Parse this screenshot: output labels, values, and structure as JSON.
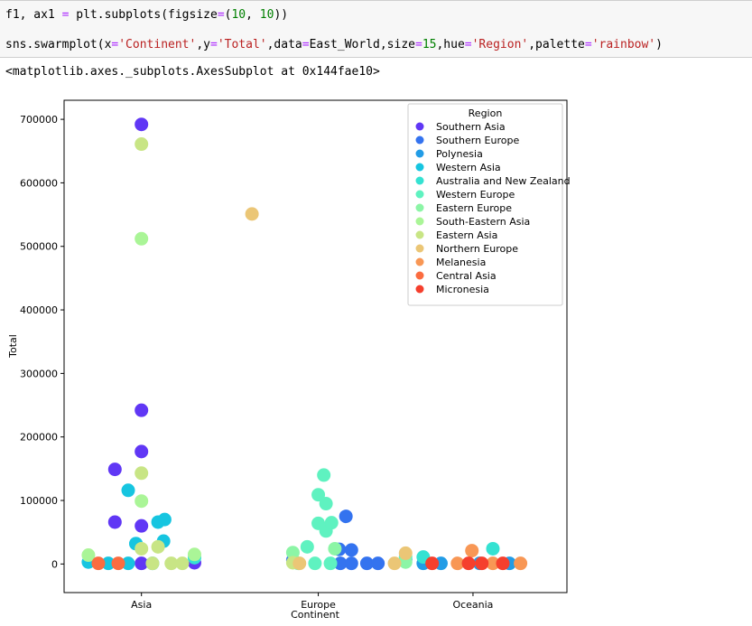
{
  "code": {
    "line1": {
      "prefix": "f1, ax1 ",
      "eq": "=",
      "mid": " plt.subplots(figsize",
      "eq2": "=",
      "open": "(",
      "num1": "10",
      "comma": ", ",
      "num2": "10",
      "close": "))"
    },
    "line2": {
      "p1": "sns.swarmplot(x",
      "e1": "=",
      "s1": "'Continent'",
      "p2": ",y",
      "e2": "=",
      "s2": "'Total'",
      "p3": ",data",
      "e3": "=",
      "p4": "East_World,size",
      "e4": "=",
      "n1": "15",
      "p5": ",hue",
      "e5": "=",
      "s3": "'Region'",
      "p6": ",palette",
      "e6": "=",
      "s4": "'rainbow'",
      "p7": ")"
    }
  },
  "output": "<matplotlib.axes._subplots.AxesSubplot at 0x144fae10>",
  "chart_data": {
    "type": "scatter",
    "xlabel": "Continent",
    "ylabel": "Total",
    "categories": [
      "Asia",
      "Europe",
      "Oceania"
    ],
    "ylim": [
      -45000,
      730000
    ],
    "yticks": [
      0,
      100000,
      200000,
      300000,
      400000,
      500000,
      600000,
      700000
    ],
    "ytick_labels": [
      "0",
      "100000",
      "200000",
      "300000",
      "400000",
      "500000",
      "600000",
      "700000"
    ],
    "legend": {
      "title": "Region",
      "position": "upper right"
    },
    "series": [
      {
        "name": "Southern Asia",
        "color": "#6037f5",
        "points": [
          [
            0,
            692000
          ],
          [
            0,
            242000
          ],
          [
            0,
            177000
          ],
          [
            -0.24,
            149000
          ],
          [
            -0.24,
            66000
          ],
          [
            0,
            60000
          ],
          [
            0,
            1000
          ],
          [
            0.48,
            2000
          ]
        ]
      },
      {
        "name": "Southern Europe",
        "color": "#3473ef",
        "points": [
          [
            1.85,
            75000
          ],
          [
            1.79,
            23000
          ],
          [
            1.9,
            22000
          ],
          [
            1.8,
            1000
          ],
          [
            1.9,
            1000
          ],
          [
            2.04,
            1000
          ],
          [
            2.14,
            1000
          ],
          [
            1.37,
            6000
          ],
          [
            2.39,
            7000
          ]
        ]
      },
      {
        "name": "Polynesia",
        "color": "#229ce6",
        "points": [
          [
            2.55,
            1000
          ],
          [
            2.71,
            1000
          ],
          [
            3.06,
            1000
          ],
          [
            3.33,
            1000
          ]
        ]
      },
      {
        "name": "Western Asia",
        "color": "#16c5e0",
        "points": [
          [
            -0.12,
            116000
          ],
          [
            -0.05,
            32000
          ],
          [
            0.21,
            70000
          ],
          [
            0.15,
            66000
          ],
          [
            0.2,
            36000
          ],
          [
            -0.12,
            1000
          ],
          [
            -0.3,
            1000
          ],
          [
            -0.48,
            3000
          ],
          [
            0.1,
            1000
          ],
          [
            -0.05,
            32000
          ]
        ]
      },
      {
        "name": "Australia and New Zealand",
        "color": "#35e2d2",
        "points": [
          [
            2.55,
            11000
          ],
          [
            3.18,
            24000
          ],
          [
            0.48,
            10000
          ]
        ]
      },
      {
        "name": "Western Europe",
        "color": "#5ff2c0",
        "points": [
          [
            1.65,
            140000
          ],
          [
            1.6,
            109000
          ],
          [
            1.67,
            95000
          ],
          [
            1.6,
            64000
          ],
          [
            1.67,
            52000
          ],
          [
            1.72,
            65000
          ],
          [
            1.5,
            27000
          ],
          [
            1.42,
            1000
          ],
          [
            1.57,
            1000
          ],
          [
            1.71,
            1000
          ],
          [
            2.39,
            11000
          ]
        ]
      },
      {
        "name": "Eastern Europe",
        "color": "#8cf5a6",
        "points": [
          [
            1.75,
            24000
          ],
          [
            1.37,
            18000
          ],
          [
            2.39,
            3000
          ]
        ]
      },
      {
        "name": "South-Eastern Asia",
        "color": "#aaf597",
        "points": [
          [
            0,
            512000
          ],
          [
            0,
            99000
          ],
          [
            -0.48,
            14000
          ],
          [
            0.48,
            15000
          ]
        ]
      },
      {
        "name": "Eastern Asia",
        "color": "#c8e585",
        "points": [
          [
            0,
            661000
          ],
          [
            0,
            143000
          ],
          [
            0,
            24000
          ],
          [
            0.15,
            27000
          ],
          [
            0.27,
            1000
          ],
          [
            0.37,
            1000
          ],
          [
            0.1,
            1000
          ],
          [
            1.37,
            2000
          ]
        ]
      },
      {
        "name": "Northern Europe",
        "color": "#ebc676",
        "points": [
          [
            1.0,
            551000
          ],
          [
            1.43,
            1000
          ],
          [
            2.29,
            1000
          ],
          [
            2.39,
            17000
          ]
        ]
      },
      {
        "name": "Melanesia",
        "color": "#f89755",
        "points": [
          [
            2.99,
            21000
          ],
          [
            2.86,
            1000
          ],
          [
            3.18,
            1000
          ],
          [
            3.43,
            1000
          ]
        ]
      },
      {
        "name": "Central Asia",
        "color": "#fb6c40",
        "points": [
          [
            -0.39,
            1000
          ],
          [
            -0.21,
            1000
          ]
        ]
      },
      {
        "name": "Micronesia",
        "color": "#f53f2d",
        "points": [
          [
            2.63,
            1000
          ],
          [
            2.96,
            1000
          ],
          [
            3.08,
            1000
          ],
          [
            3.27,
            1000
          ]
        ]
      }
    ]
  }
}
